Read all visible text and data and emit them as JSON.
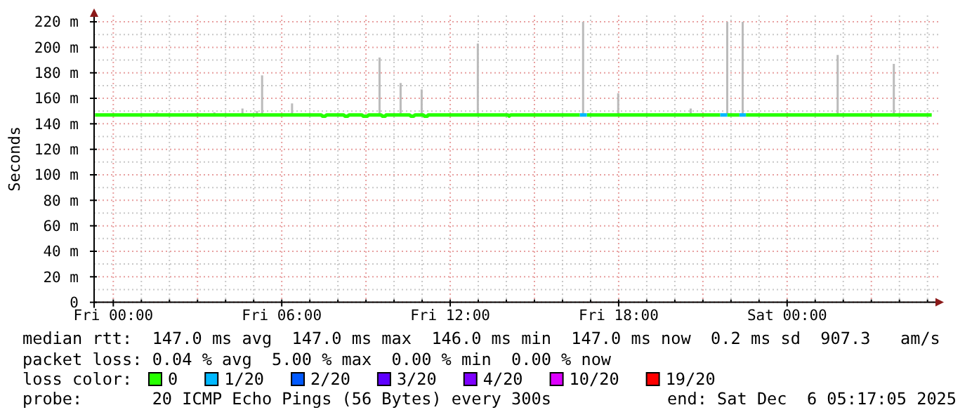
{
  "chart_data": {
    "type": "line",
    "ylabel": "Seconds",
    "xlim": [
      "2025-12-04T23:19",
      "2025-12-06T05:26"
    ],
    "xticks": [
      {
        "value": "2025-12-05T00:00",
        "label": "Fri 00:00"
      },
      {
        "value": "2025-12-05T01:00",
        "label": null
      },
      {
        "value": "2025-12-05T02:00",
        "label": null
      },
      {
        "value": "2025-12-05T03:00",
        "label": null
      },
      {
        "value": "2025-12-05T04:00",
        "label": null
      },
      {
        "value": "2025-12-05T05:00",
        "label": null
      },
      {
        "value": "2025-12-05T06:00",
        "label": "Fri 06:00"
      },
      {
        "value": "2025-12-05T07:00",
        "label": null
      },
      {
        "value": "2025-12-05T08:00",
        "label": null
      },
      {
        "value": "2025-12-05T09:00",
        "label": null
      },
      {
        "value": "2025-12-05T10:00",
        "label": null
      },
      {
        "value": "2025-12-05T11:00",
        "label": null
      },
      {
        "value": "2025-12-05T12:00",
        "label": "Fri 12:00"
      },
      {
        "value": "2025-12-05T13:00",
        "label": null
      },
      {
        "value": "2025-12-05T14:00",
        "label": null
      },
      {
        "value": "2025-12-05T15:00",
        "label": null
      },
      {
        "value": "2025-12-05T16:00",
        "label": null
      },
      {
        "value": "2025-12-05T17:00",
        "label": null
      },
      {
        "value": "2025-12-05T18:00",
        "label": "Fri 18:00"
      },
      {
        "value": "2025-12-05T19:00",
        "label": null
      },
      {
        "value": "2025-12-05T20:00",
        "label": null
      },
      {
        "value": "2025-12-05T21:00",
        "label": null
      },
      {
        "value": "2025-12-05T22:00",
        "label": null
      },
      {
        "value": "2025-12-05T23:00",
        "label": null
      },
      {
        "value": "2025-12-06T00:00",
        "label": "Sat 00:00"
      },
      {
        "value": "2025-12-06T01:00",
        "label": null
      },
      {
        "value": "2025-12-06T02:00",
        "label": null
      },
      {
        "value": "2025-12-06T03:00",
        "label": null
      },
      {
        "value": "2025-12-06T04:00",
        "label": null
      },
      {
        "value": "2025-12-06T05:00",
        "label": null
      }
    ],
    "ylim": [
      0,
      225
    ],
    "yticks": [
      0,
      {
        "value": 10,
        "label": null
      },
      {
        "value": 20,
        "label": "20 m"
      },
      {
        "value": 30,
        "label": null
      },
      {
        "value": 40,
        "label": "40 m"
      },
      {
        "value": 50,
        "label": null
      },
      {
        "value": 60,
        "label": "60 m"
      },
      {
        "value": 70,
        "label": null
      },
      {
        "value": 80,
        "label": "80 m"
      },
      {
        "value": 90,
        "label": null
      },
      {
        "value": 100,
        "label": "100 m"
      },
      {
        "value": 110,
        "label": null
      },
      {
        "value": 120,
        "label": "120 m"
      },
      {
        "value": 130,
        "label": null
      },
      {
        "value": 140,
        "label": "140 m"
      },
      {
        "value": 150,
        "label": null
      },
      {
        "value": 160,
        "label": "160 m"
      },
      {
        "value": 170,
        "label": null
      },
      {
        "value": 180,
        "label": "180 m"
      },
      {
        "value": 190,
        "label": null
      },
      {
        "value": 200,
        "label": "200 m"
      },
      {
        "value": 210,
        "label": null
      },
      {
        "value": 220,
        "label": "220 m"
      }
    ],
    "grid": true,
    "marker": "none",
    "line_style": "solid",
    "legend": "bottom",
    "legend_title": "loss color:",
    "series": [
      {
        "name": "0",
        "color": "#26ff00",
        "x": [
          "2025-12-04T23:21",
          "2025-12-05T01:33",
          "2025-12-05T03:36",
          "2025-12-05T04:36",
          "2025-12-05T05:07",
          "2025-12-05T05:18",
          "2025-12-05T06:22",
          "2025-12-05T07:24",
          "2025-12-05T07:27",
          "2025-12-05T07:33",
          "2025-12-05T07:36",
          "2025-12-05T08:12",
          "2025-12-05T08:15",
          "2025-12-05T08:21",
          "2025-12-05T08:24",
          "2025-12-05T08:51",
          "2025-12-05T08:54",
          "2025-12-05T09:03",
          "2025-12-05T09:06",
          "2025-12-05T09:29",
          "2025-12-05T09:32",
          "2025-12-05T09:35",
          "2025-12-05T09:41",
          "2025-12-05T09:43",
          "2025-12-05T10:14",
          "2025-12-05T10:33",
          "2025-12-05T10:36",
          "2025-12-05T10:42",
          "2025-12-05T10:45",
          "2025-12-05T10:59",
          "2025-12-05T11:02",
          "2025-12-05T11:05",
          "2025-12-05T11:11",
          "2025-12-05T11:13",
          "2025-12-05T12:59",
          "2025-12-05T14:03",
          "2025-12-05T14:06",
          "2025-12-05T14:09",
          "2025-12-05T16:37",
          "2025-12-05T16:44",
          "2025-12-05T16:52",
          "2025-12-05T17:59",
          "2025-12-05T20:34",
          "2025-12-05T21:37",
          "2025-12-05T21:44",
          "2025-12-05T21:52",
          "2025-12-05T22:18",
          "2025-12-05T22:25",
          "2025-12-05T22:32",
          "2025-12-06T01:48",
          "2025-12-06T03:48",
          "2025-12-06T05:09"
        ],
        "values": [
          147,
          147,
          147,
          147,
          147,
          147,
          147,
          147,
          146,
          146,
          147,
          147,
          146,
          146,
          147,
          147,
          146,
          146,
          147,
          147,
          147,
          146,
          146,
          147,
          147,
          147,
          146,
          146,
          147,
          147,
          147,
          146,
          146,
          147,
          147,
          147,
          146,
          147,
          147,
          null,
          147,
          147,
          147,
          147,
          null,
          147,
          147,
          null,
          147,
          147,
          147,
          147
        ],
        "errors": [
          null,
          [
            147,
            149
          ],
          [
            147,
            149
          ],
          [
            147,
            152
          ],
          [
            147,
            150
          ],
          [
            147,
            178
          ],
          [
            147,
            156
          ],
          null,
          null,
          null,
          null,
          null,
          null,
          null,
          null,
          null,
          null,
          null,
          null,
          [
            147,
            192
          ],
          null,
          null,
          null,
          null,
          [
            147,
            172
          ],
          null,
          null,
          null,
          null,
          [
            147,
            167
          ],
          null,
          null,
          null,
          null,
          [
            147,
            203
          ],
          null,
          null,
          null,
          null,
          null,
          null,
          [
            147,
            164
          ],
          [
            147,
            152
          ],
          null,
          null,
          [
            147,
            220
          ],
          null,
          null,
          null,
          [
            147,
            194
          ],
          [
            147,
            187
          ],
          null
        ]
      },
      {
        "name": "1/20",
        "color": "#00b8ff",
        "x": [
          "2025-12-05T16:37",
          "2025-12-05T16:44",
          "2025-12-05T16:52",
          "2025-12-05T19:00",
          "2025-12-05T21:37",
          "2025-12-05T21:44",
          "2025-12-05T21:52",
          "2025-12-05T22:00",
          "2025-12-05T22:18",
          "2025-12-05T22:25",
          "2025-12-05T22:32"
        ],
        "values": [
          147,
          147,
          147,
          null,
          147,
          147,
          147,
          null,
          147,
          147,
          147
        ],
        "errors": [
          null,
          [
            147,
            220
          ],
          null,
          null,
          null,
          null,
          null,
          null,
          null,
          [
            147,
            220
          ],
          null
        ]
      },
      {
        "name": "2/20",
        "color": "#0059ff"
      },
      {
        "name": "3/20",
        "color": "#5e00ff"
      },
      {
        "name": "4/20",
        "color": "#7e00ff"
      },
      {
        "name": "10/20",
        "color": "#dd00ff"
      },
      {
        "name": "19/20",
        "color": "#ff0000"
      }
    ],
    "annotations": [
      "median rtt:  147.0 ms avg  147.0 ms max  146.0 ms min  147.0 ms now  0.2 ms sd  907.3   am/s",
      "packet loss: 0.04 % avg  5.00 % max  0.00 % min  0.00 % now",
      "probe:       20 ICMP Echo Pings (56 Bytes) every 300s",
      "end: Sat Dec  6 05:17:05 2025"
    ]
  }
}
